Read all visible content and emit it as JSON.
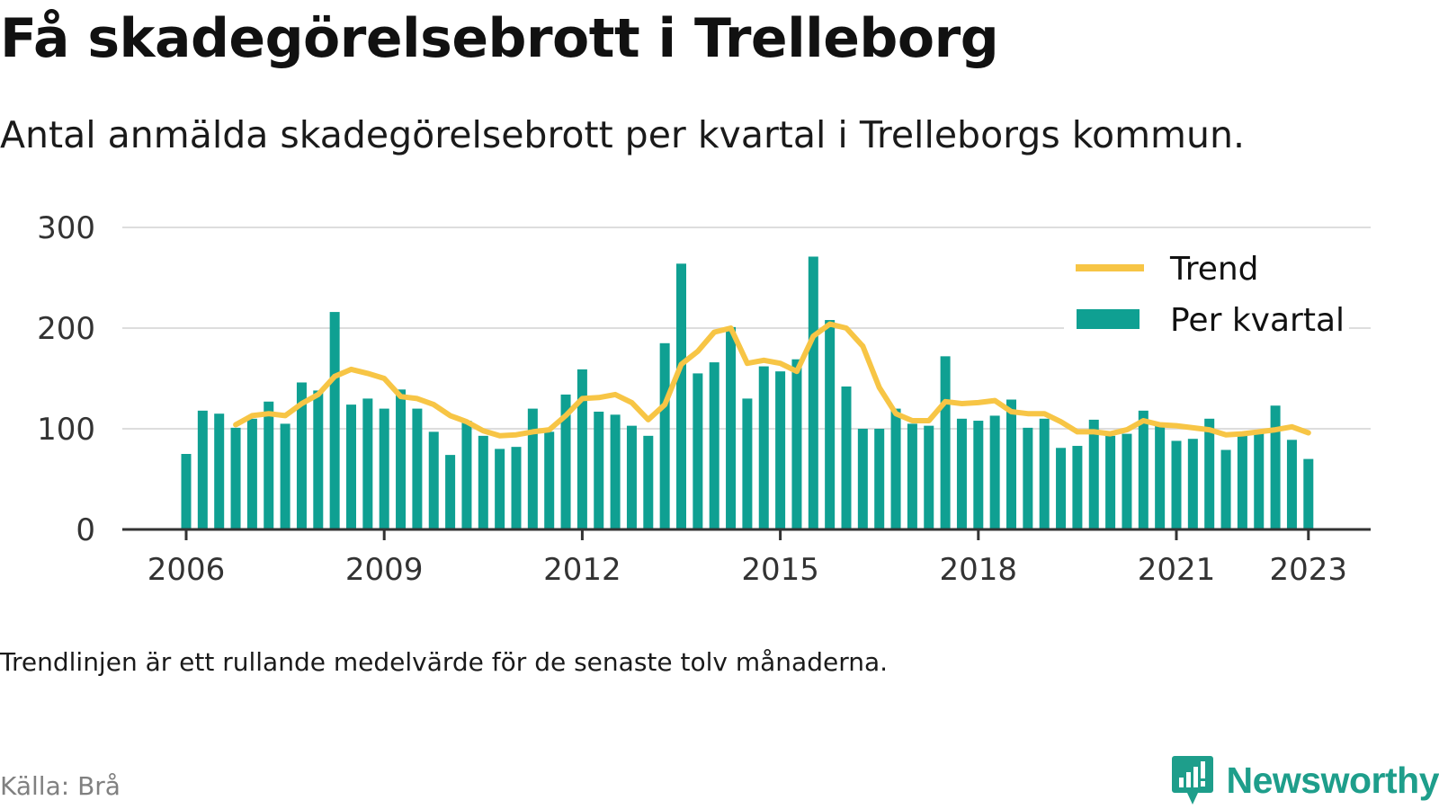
{
  "title": "Få skadegörelsebrott i Trelleborg",
  "subtitle": "Antal anmälda skadegörelsebrott per kvartal i Trelleborgs kommun.",
  "note": "Trendlinjen är ett rullande medelvärde för de senaste tolv månaderna.",
  "source": "Källa: Brå",
  "brand": "Newsworthy",
  "brand_icon": "bar-chart-speech-bubble-icon",
  "colors": {
    "bar": "#0fa092",
    "trend": "#f7c545",
    "grid": "#dddddd",
    "axis": "#333333",
    "brand": "#1e9e8b"
  },
  "chart_data": {
    "type": "bar",
    "x_tick_labels": [
      "2006",
      "2009",
      "2012",
      "2015",
      "2018",
      "2021",
      "2023"
    ],
    "y_tick_labels": [
      "0",
      "100",
      "200",
      "300"
    ],
    "ylim": [
      0,
      300
    ],
    "grid": true,
    "legend_position": "top-right",
    "categories": [
      "2006Q1",
      "2006Q2",
      "2006Q3",
      "2006Q4",
      "2007Q1",
      "2007Q2",
      "2007Q3",
      "2007Q4",
      "2008Q1",
      "2008Q2",
      "2008Q3",
      "2008Q4",
      "2009Q1",
      "2009Q2",
      "2009Q3",
      "2009Q4",
      "2010Q1",
      "2010Q2",
      "2010Q3",
      "2010Q4",
      "2011Q1",
      "2011Q2",
      "2011Q3",
      "2011Q4",
      "2012Q1",
      "2012Q2",
      "2012Q3",
      "2012Q4",
      "2013Q1",
      "2013Q2",
      "2013Q3",
      "2013Q4",
      "2014Q1",
      "2014Q2",
      "2014Q3",
      "2014Q4",
      "2015Q1",
      "2015Q2",
      "2015Q3",
      "2015Q4",
      "2016Q1",
      "2016Q2",
      "2016Q3",
      "2016Q4",
      "2017Q1",
      "2017Q2",
      "2017Q3",
      "2017Q4",
      "2018Q1",
      "2018Q2",
      "2018Q3",
      "2018Q4",
      "2019Q1",
      "2019Q2",
      "2019Q3",
      "2019Q4",
      "2020Q1",
      "2020Q2",
      "2020Q3",
      "2020Q4",
      "2021Q1",
      "2021Q2",
      "2021Q3",
      "2021Q4",
      "2022Q1",
      "2022Q2",
      "2022Q3",
      "2022Q4",
      "2023Q1"
    ],
    "series": [
      {
        "name": "Per kvartal",
        "type": "bar",
        "values": [
          75,
          118,
          115,
          101,
          110,
          127,
          105,
          146,
          138,
          216,
          124,
          130,
          120,
          139,
          120,
          97,
          74,
          108,
          93,
          80,
          82,
          120,
          97,
          134,
          159,
          117,
          114,
          103,
          93,
          185,
          264,
          155,
          166,
          201,
          130,
          162,
          157,
          169,
          271,
          208,
          142,
          100,
          100,
          120,
          105,
          103,
          172,
          110,
          108,
          113,
          129,
          101,
          110,
          81,
          83,
          109,
          93,
          95,
          118,
          103,
          88,
          90,
          110,
          79,
          97,
          98,
          123,
          89,
          70
        ]
      },
      {
        "name": "Trend",
        "type": "line",
        "values": [
          null,
          null,
          null,
          104,
          113,
          115,
          113,
          125,
          134,
          152,
          159,
          155,
          150,
          132,
          130,
          124,
          113,
          107,
          98,
          93,
          94,
          97,
          99,
          113,
          130,
          131,
          134,
          126,
          109,
          124,
          164,
          177,
          196,
          200,
          165,
          168,
          165,
          157,
          192,
          204,
          200,
          182,
          141,
          115,
          108,
          108,
          127,
          125,
          126,
          128,
          117,
          115,
          115,
          107,
          97,
          97,
          95,
          99,
          108,
          104,
          103,
          101,
          99,
          94,
          95,
          97,
          99,
          102,
          96
        ]
      }
    ]
  }
}
